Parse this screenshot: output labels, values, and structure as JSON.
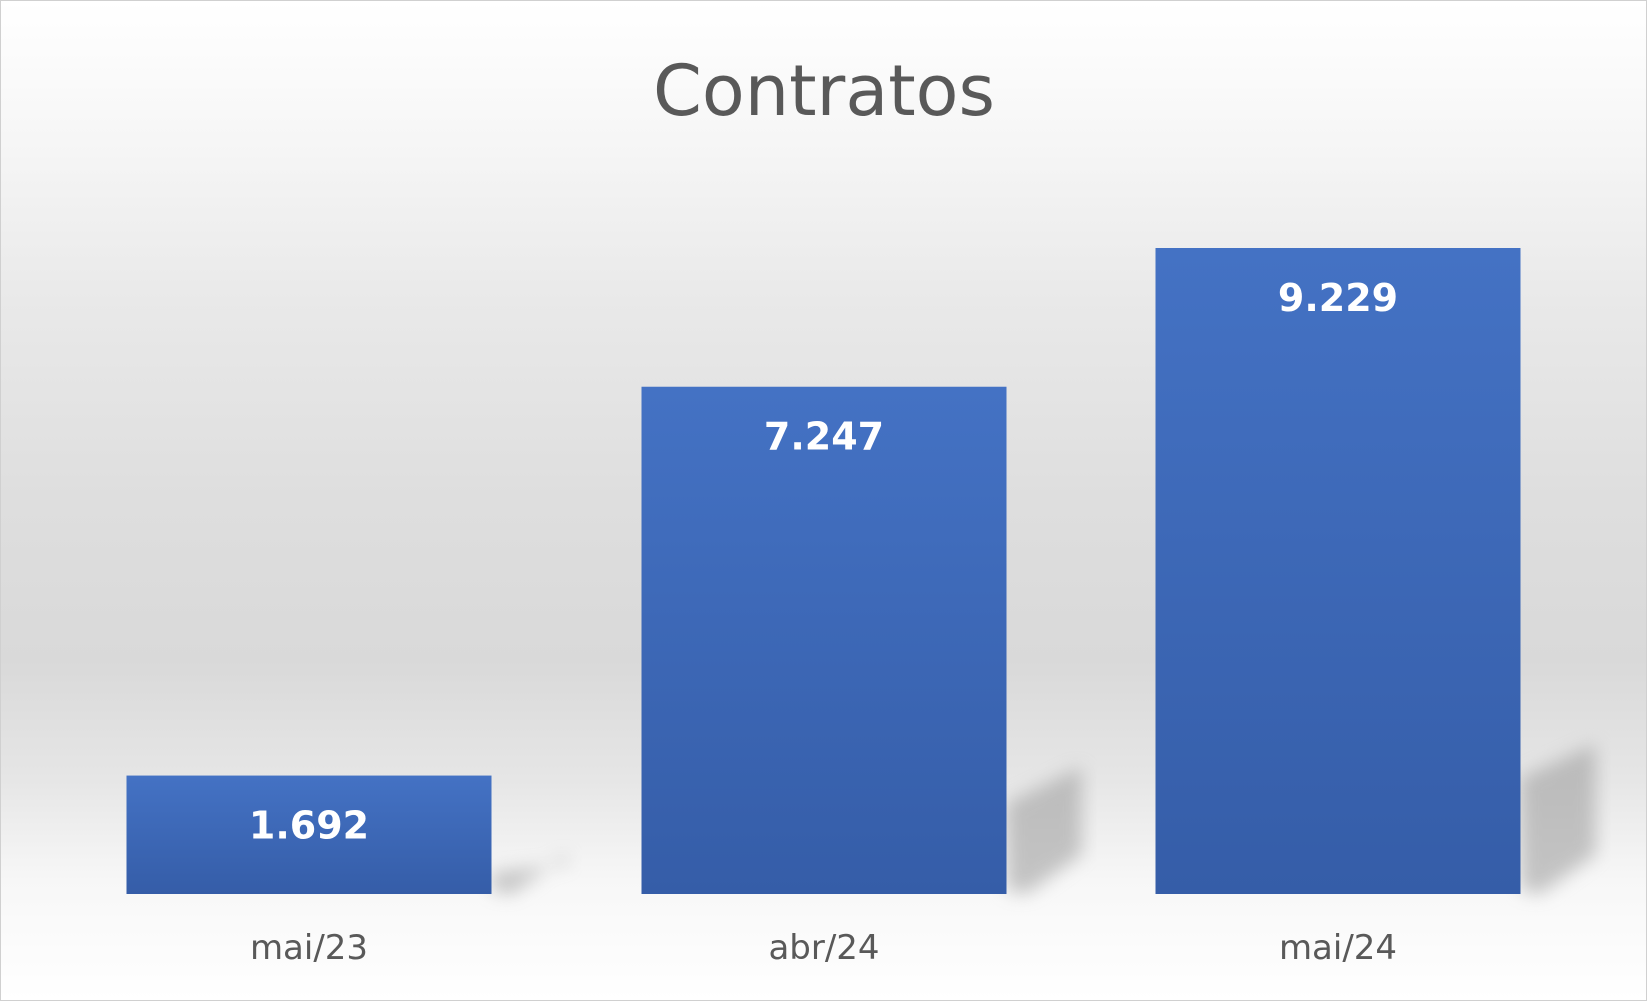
{
  "chart_data": {
    "type": "bar",
    "title": "Contratos",
    "categories": [
      "mai/23",
      "abr/24",
      "mai/24"
    ],
    "values": [
      1692,
      7247,
      9229
    ],
    "value_labels": [
      "1.692",
      "7.247",
      "9.229"
    ],
    "xlabel": "",
    "ylabel": "",
    "ylim": [
      0,
      9229
    ],
    "grid": false,
    "legend": "none",
    "colors": {
      "bar_top": "#4472C4",
      "bar_bottom": "#355DA8",
      "title": "#595959",
      "tick_label": "#595959",
      "data_label": "#FFFFFF"
    }
  }
}
